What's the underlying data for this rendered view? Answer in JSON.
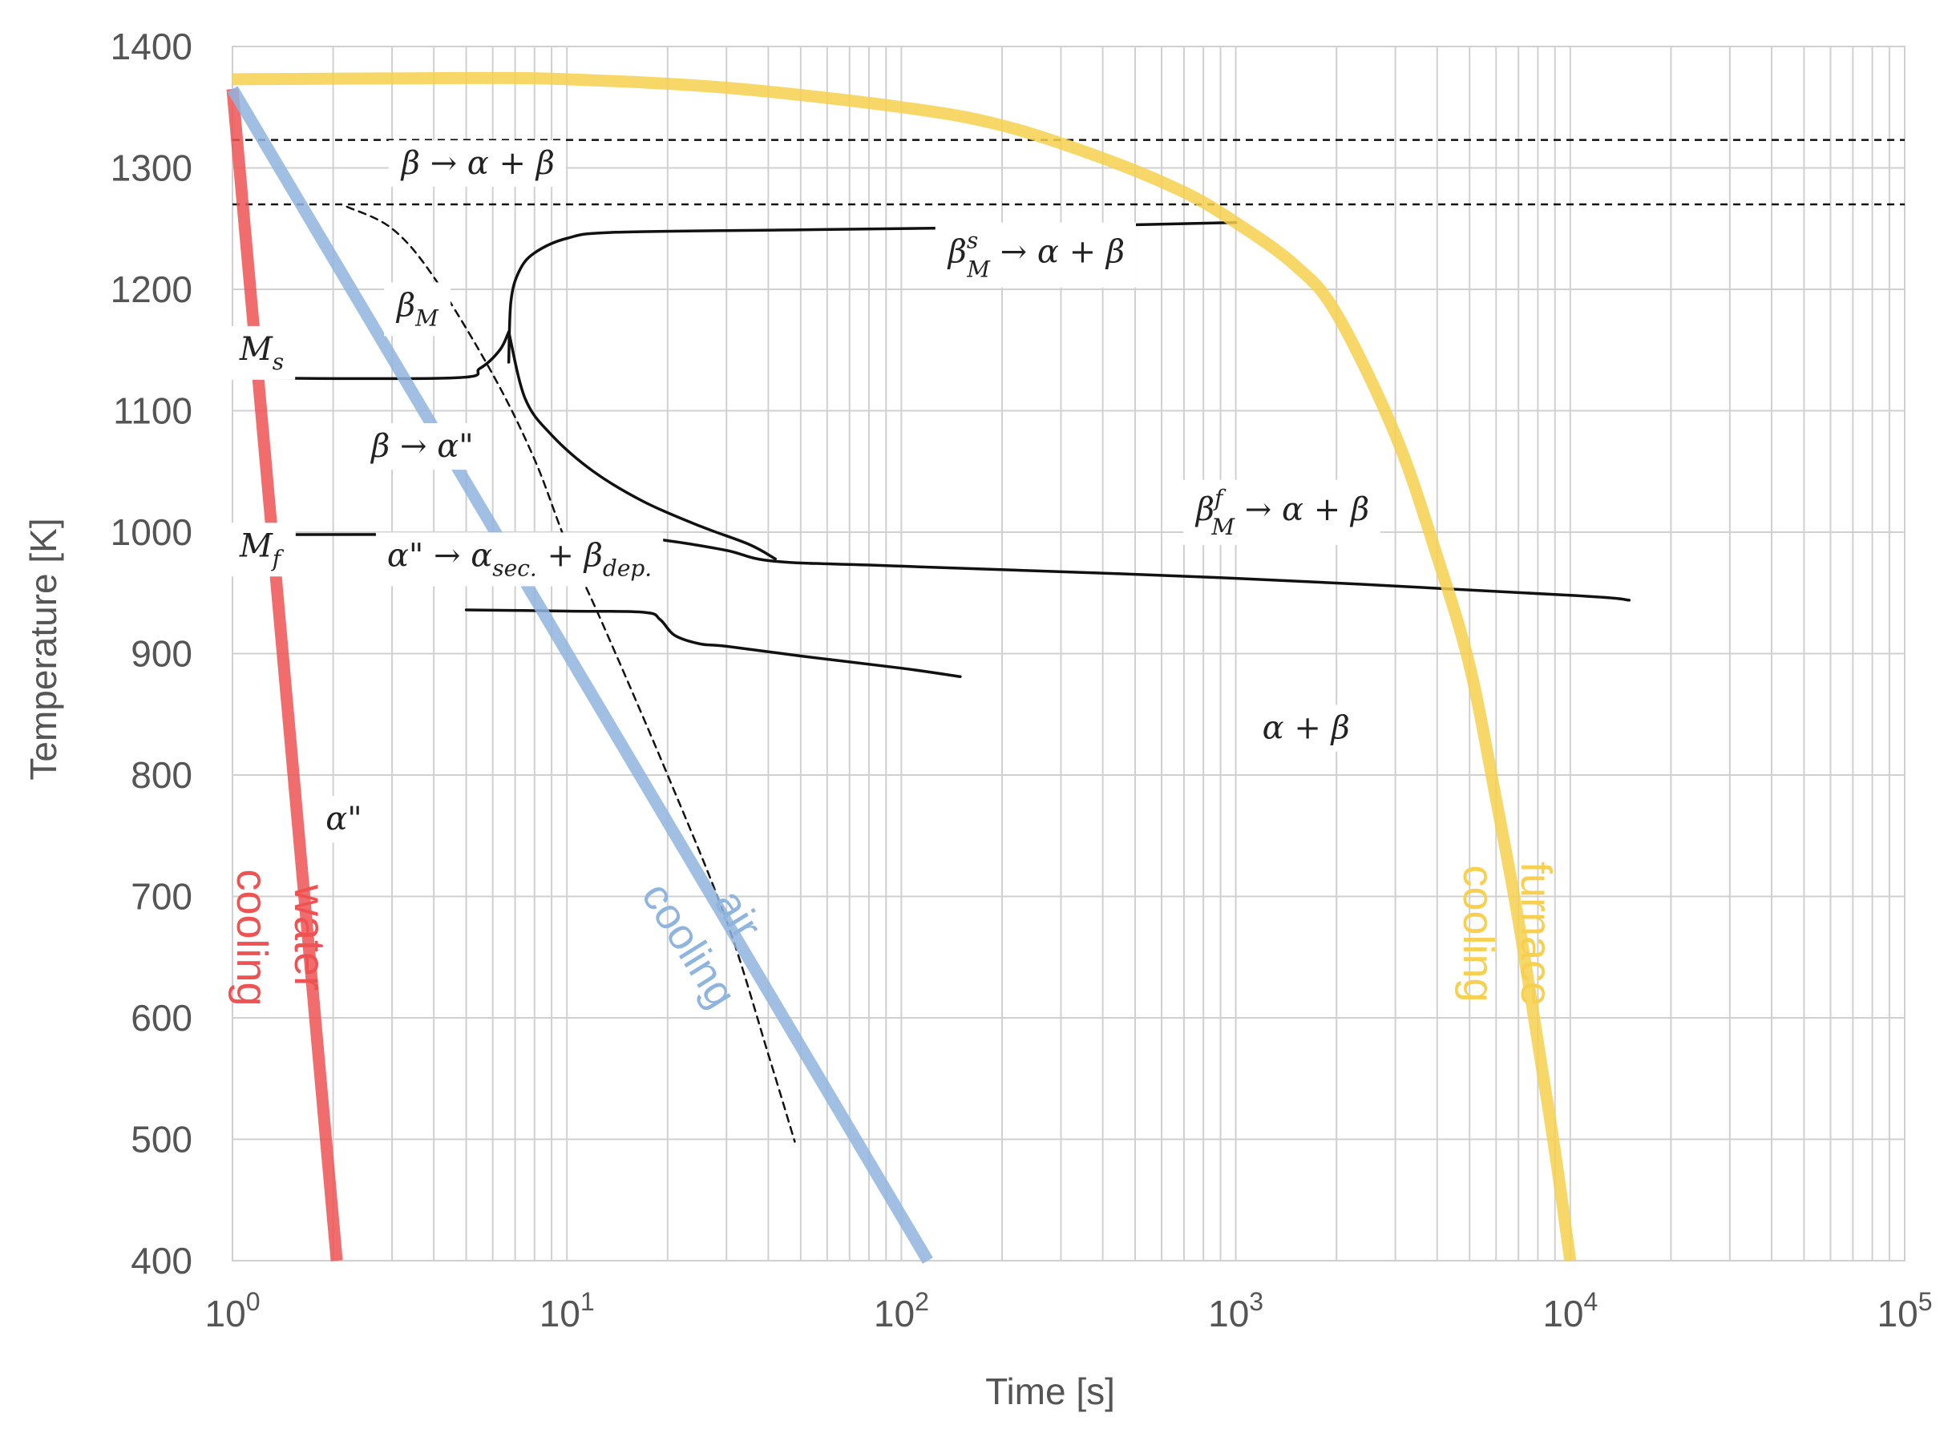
{
  "chart_data": {
    "type": "line",
    "xscale": "log",
    "xlabel": "Time [s]",
    "ylabel": "Temperature [K]",
    "xlim": [
      1,
      100000
    ],
    "ylim": [
      400,
      1400
    ],
    "x_ticks": [
      {
        "value": 1,
        "base": "10",
        "exp": "0"
      },
      {
        "value": 10,
        "base": "10",
        "exp": "1"
      },
      {
        "value": 100,
        "base": "10",
        "exp": "2"
      },
      {
        "value": 1000,
        "base": "10",
        "exp": "3"
      },
      {
        "value": 10000,
        "base": "10",
        "exp": "4"
      },
      {
        "value": 100000,
        "base": "10",
        "exp": "5"
      }
    ],
    "y_ticks": [
      400,
      500,
      600,
      700,
      800,
      900,
      1000,
      1100,
      1200,
      1300,
      1400
    ],
    "grid": true,
    "colors": {
      "water": "#ee5252",
      "air": "#8fb4de",
      "furnace": "#f7d04f",
      "lines": "#111111",
      "grid": "#d0d0d0",
      "text": "#555555"
    },
    "cooling_curves": [
      {
        "name": "water cooling",
        "label_lines": [
          "water",
          "cooling"
        ],
        "color": "#ee5252",
        "points": [
          [
            1.0,
            1365
          ],
          [
            2.05,
            400
          ]
        ]
      },
      {
        "name": "air cooling",
        "label_lines": [
          "air",
          "cooling"
        ],
        "color": "#8fb4de",
        "points": [
          [
            1.0,
            1365
          ],
          [
            120,
            400
          ]
        ]
      },
      {
        "name": "furnace cooling",
        "label_lines": [
          "furnace",
          "cooling"
        ],
        "color": "#f7d04f",
        "points": [
          [
            1.0,
            1373
          ],
          [
            5,
            1374
          ],
          [
            10,
            1373
          ],
          [
            30,
            1366
          ],
          [
            100,
            1350
          ],
          [
            200,
            1335
          ],
          [
            400,
            1308
          ],
          [
            700,
            1280
          ],
          [
            1000,
            1255
          ],
          [
            1500,
            1220
          ],
          [
            2000,
            1180
          ],
          [
            3000,
            1080
          ],
          [
            4000,
            980
          ],
          [
            5000,
            890
          ],
          [
            6000,
            780
          ],
          [
            7000,
            680
          ],
          [
            8000,
            580
          ],
          [
            9000,
            490
          ],
          [
            10000,
            400
          ]
        ]
      }
    ],
    "reference_lines": [
      {
        "name": "upper dashed",
        "y": 1323,
        "style": "dashed"
      },
      {
        "name": "lower dashed",
        "y": 1270,
        "style": "dashed"
      }
    ],
    "boundaries": [
      {
        "name": "Ms start",
        "style": "solid",
        "points": [
          [
            1.0,
            1127
          ],
          [
            4.5,
            1127
          ],
          [
            5.5,
            1135
          ],
          [
            6.3,
            1150
          ],
          [
            6.7,
            1165
          ]
        ]
      },
      {
        "name": "beta-s transformation",
        "style": "solid",
        "points": [
          [
            6.7,
            1140
          ],
          [
            6.8,
            1190
          ],
          [
            7.2,
            1215
          ],
          [
            8,
            1230
          ],
          [
            10,
            1242
          ],
          [
            14,
            1247
          ],
          [
            50,
            1249
          ],
          [
            200,
            1251
          ],
          [
            1000,
            1255
          ]
        ]
      },
      {
        "name": "Ms to Mf branch",
        "style": "solid",
        "points": [
          [
            6.7,
            1165
          ],
          [
            7.5,
            1110
          ],
          [
            9,
            1080
          ],
          [
            12,
            1050
          ],
          [
            17,
            1025
          ],
          [
            25,
            1005
          ],
          [
            35,
            990
          ],
          [
            42,
            978
          ]
        ]
      },
      {
        "name": "Mf",
        "style": "solid",
        "points": [
          [
            1.0,
            998
          ],
          [
            10,
            998
          ],
          [
            15,
            996
          ],
          [
            20,
            993
          ],
          [
            30,
            985
          ],
          [
            42,
            976
          ],
          [
            100,
            972
          ],
          [
            1000,
            962
          ],
          [
            10000,
            948
          ],
          [
            15000,
            944
          ]
        ]
      },
      {
        "name": "alpha-double-prime decomposition",
        "style": "solid",
        "points": [
          [
            5,
            936
          ],
          [
            10,
            935
          ],
          [
            17,
            934
          ],
          [
            19,
            928
          ],
          [
            21,
            915
          ],
          [
            25,
            908
          ],
          [
            30,
            906
          ],
          [
            50,
            898
          ],
          [
            100,
            888
          ],
          [
            150,
            881
          ]
        ]
      },
      {
        "name": "dashed nose",
        "style": "dashed",
        "points": [
          [
            2.2,
            1268
          ],
          [
            3,
            1250
          ],
          [
            4,
            1210
          ],
          [
            6,
            1130
          ],
          [
            8,
            1060
          ],
          [
            10,
            990
          ],
          [
            13,
            920
          ],
          [
            20,
            800
          ],
          [
            30,
            680
          ],
          [
            40,
            570
          ],
          [
            48,
            498
          ]
        ]
      }
    ],
    "annotations": [
      {
        "text": "β → α + β",
        "x": 3.2,
        "y": 1295
      },
      {
        "text": "β → α\"",
        "x": 2.6,
        "y": 1062
      },
      {
        "text": "α\" → α",
        "sub": "sec.",
        "mid": " + β",
        "sub2": "dep.",
        "x": 2.9,
        "y": 972
      },
      {
        "text": "α + β",
        "x": 1200,
        "y": 830
      },
      {
        "text": "α\"",
        "x": 1.9,
        "y": 755
      },
      {
        "text": "β",
        "sub": "M",
        "x": 3.1,
        "y": 1178
      },
      {
        "text": "M",
        "sub": "s",
        "x": 1.05,
        "y": 1142
      },
      {
        "text": "M",
        "sub": "f",
        "x": 1.05,
        "y": 980
      },
      {
        "text": "β",
        "sub": "M",
        "sup": "s",
        "tail": " → α + β",
        "x": 138,
        "y": 1222
      },
      {
        "text": "β",
        "sub": "M",
        "sup": "f",
        "tail": " → α + β",
        "x": 760,
        "y": 1010
      }
    ]
  }
}
